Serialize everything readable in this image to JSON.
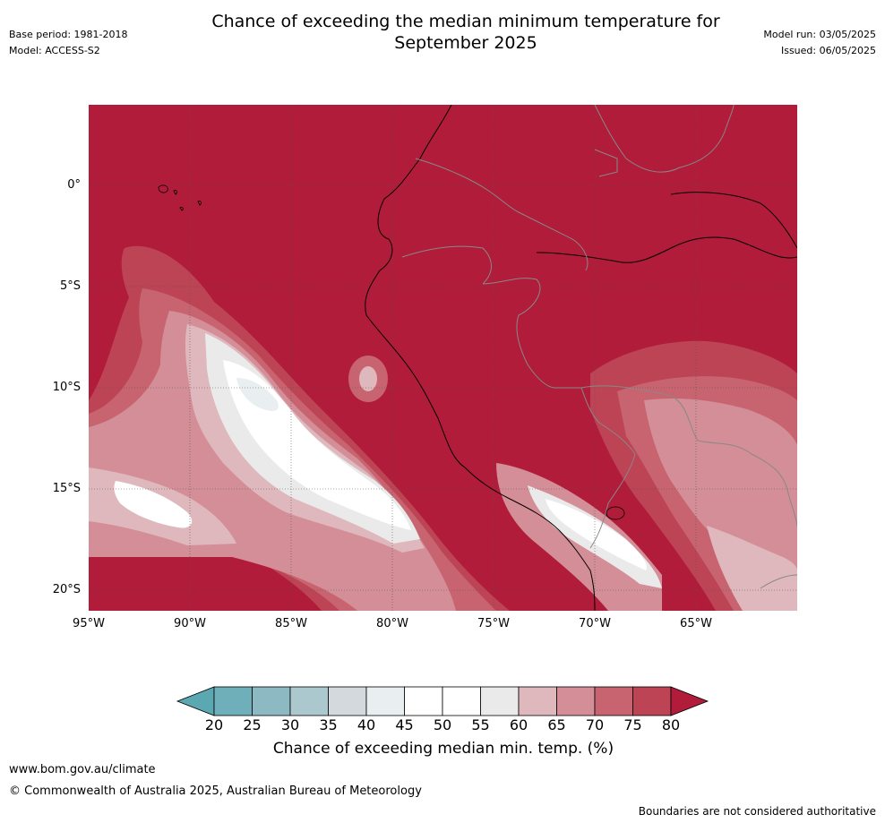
{
  "header": {
    "title_line1": "Chance of exceeding the median minimum temperature for",
    "title_line2": "September 2025",
    "base_period": "Base period: 1981-2018",
    "model": "Model: ACCESS-S2",
    "model_run": "Model run: 03/05/2025",
    "issued": "Issued: 06/05/2025"
  },
  "map": {
    "lat_labels": [
      "0°",
      "5°S",
      "10°S",
      "15°S",
      "20°S"
    ],
    "lon_labels": [
      "95°W",
      "90°W",
      "85°W",
      "80°W",
      "75°W",
      "70°W",
      "65°W"
    ],
    "background_color": "#b01c3a"
  },
  "legend": {
    "ticks": [
      "20",
      "25",
      "30",
      "35",
      "40",
      "45",
      "50",
      "55",
      "60",
      "65",
      "70",
      "75",
      "80"
    ],
    "colors": [
      "#5ba7b2",
      "#6eafba",
      "#8db9c3",
      "#aac8cd",
      "#d3d9dc",
      "#e9eef0",
      "#ffffff",
      "#ffffff",
      "#eaeaea",
      "#dfb8bd",
      "#d48e98",
      "#c86470",
      "#bd4455",
      "#b01c3a"
    ],
    "label": "Chance of exceeding median min. temp. (%)"
  },
  "footer": {
    "url": "www.bom.gov.au/climate",
    "copyright": "© Commonwealth of Australia 2025, Australian Bureau of Meteorology",
    "disclaimer": "Boundaries are not considered authoritative"
  }
}
